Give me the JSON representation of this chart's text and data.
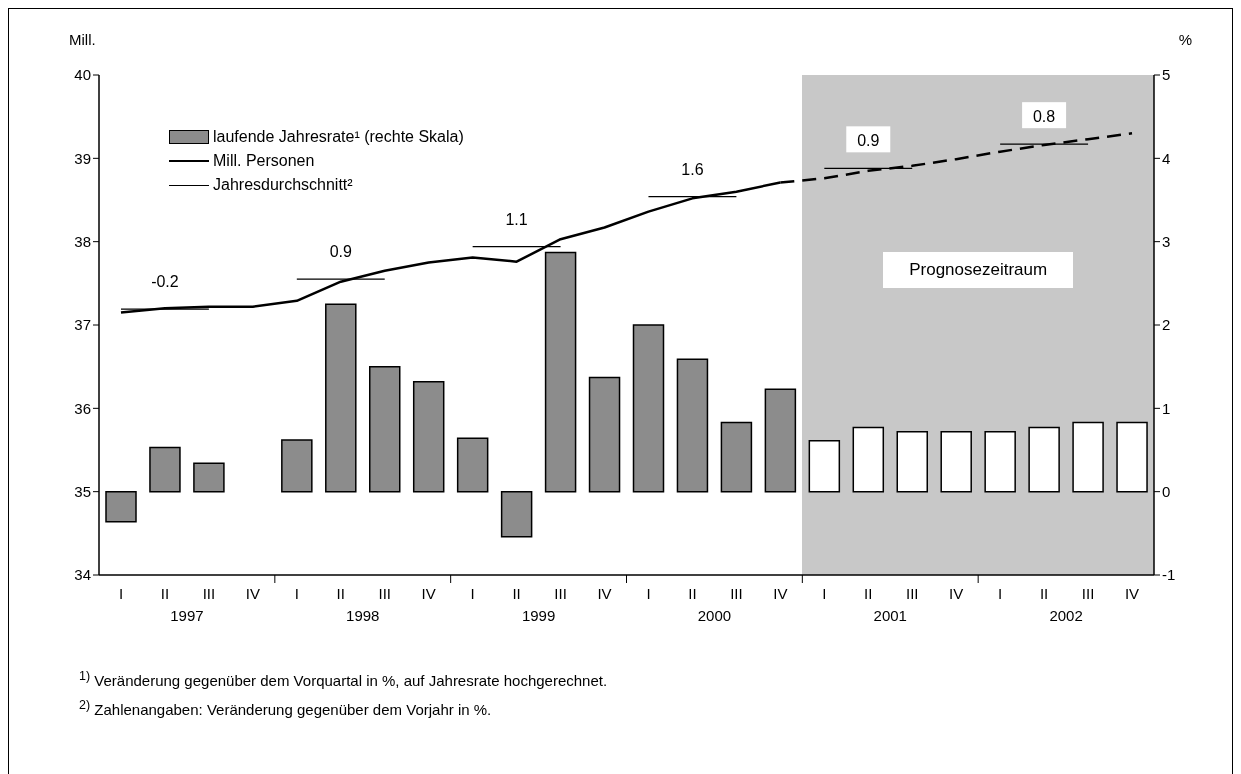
{
  "chart_data": {
    "type": "bar",
    "ylabel": "Mill.",
    "y2label": "%",
    "categories": [
      "I",
      "II",
      "III",
      "IV",
      "I",
      "II",
      "III",
      "IV",
      "I",
      "II",
      "III",
      "IV",
      "I",
      "II",
      "III",
      "IV",
      "I",
      "II",
      "III",
      "IV",
      "I",
      "II",
      "III",
      "IV"
    ],
    "ylim": [
      34,
      40
    ],
    "yticks": [
      34,
      35,
      36,
      37,
      38,
      39,
      40
    ],
    "y2lim": [
      -1,
      5
    ],
    "y2ticks": [
      -1,
      0,
      1,
      2,
      3,
      4,
      5
    ],
    "grid": false,
    "legend": "top left",
    "series": [
      {
        "axis": "y2",
        "name": "laufende Jahresrate¹ (rechte Skala)",
        "color": "#8c8c8c",
        "colors": [
          "#8c8c8c",
          "#8c8c8c",
          "#8c8c8c",
          "#8c8c8c",
          "#8c8c8c",
          "#8c8c8c",
          "#8c8c8c",
          "#8c8c8c",
          "#8c8c8c",
          "#8c8c8c",
          "#8c8c8c",
          "#8c8c8c",
          "#8c8c8c",
          "#8c8c8c",
          "#8c8c8c",
          "#8c8c8c",
          "#ffffff",
          "#ffffff",
          "#ffffff",
          "#ffffff",
          "#ffffff",
          "#ffffff",
          "#ffffff",
          "#ffffff"
        ],
        "values": [
          -0.36,
          0.53,
          0.34,
          0,
          0.62,
          2.25,
          1.5,
          1.32,
          0.64,
          -0.54,
          2.87,
          1.37,
          2.0,
          1.59,
          0.83,
          1.23,
          0.61,
          0.77,
          0.72,
          0.72,
          0.72,
          0.77,
          0.83,
          0.83
        ]
      },
      {
        "type": "line",
        "name": "Mill. Personen",
        "color": "#000000",
        "values": [
          37.15,
          37.2,
          37.22,
          37.22,
          37.29,
          37.52,
          37.65,
          37.75,
          37.81,
          37.76,
          38.03,
          38.17,
          38.36,
          38.52,
          38.6,
          38.71,
          null,
          null,
          null,
          null,
          null,
          null,
          null,
          null
        ]
      },
      {
        "type": "line",
        "color": "#000000",
        "line_style": "dashed",
        "values": [
          null,
          null,
          null,
          null,
          null,
          null,
          null,
          null,
          null,
          null,
          null,
          null,
          null,
          null,
          null,
          38.71,
          38.76,
          38.85,
          38.91,
          38.99,
          39.08,
          39.16,
          39.23,
          39.3
        ]
      },
      {
        "type": "line",
        "name": "Jahresdurchschnitt²",
        "color": "#000000",
        "values": [
          37.19,
          37.19,
          37.19,
          null,
          37.55,
          37.55,
          37.55,
          null,
          37.94,
          37.94,
          37.94,
          null,
          38.54,
          38.54,
          38.54,
          null,
          38.88,
          38.88,
          38.88,
          null,
          39.17,
          39.17,
          39.17,
          null
        ]
      }
    ],
    "annotations": [
      "1997",
      "1998",
      "1999",
      "2000",
      "2001",
      "2002",
      "-0.2",
      "0.9",
      "1.1",
      "1.6",
      "0.9",
      "0.8",
      "$^{1)}$ Veränderung gegenüber dem Vorquartal in %, auf Jahresrate hochgerechnet.",
      "$^{2)}$ Zahlenangaben: Veränderung gegenüber dem Vorjahr in %.",
      "Prognosezeitraum"
    ]
  }
}
